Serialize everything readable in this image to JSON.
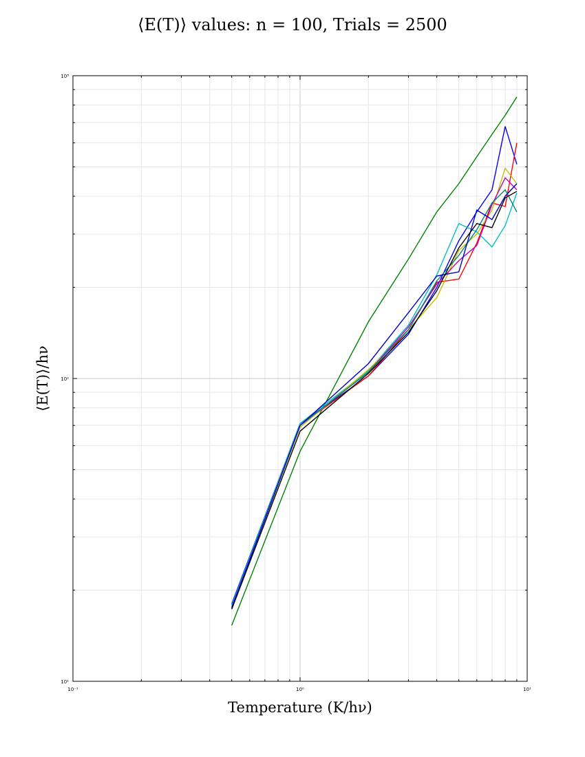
{
  "chart_data": {
    "type": "line",
    "title": "⟨E(T)⟩ values: n = 100, Trials = 2500",
    "xlabel": "Temperature (K/hν)",
    "ylabel": "⟨E(T)⟩/hν",
    "xscale": "log",
    "yscale": "log",
    "xlim": [
      0.1,
      10
    ],
    "ylim": [
      10,
      1000
    ],
    "grid": true,
    "x_ticks": [
      {
        "value": 0.1,
        "label": "10⁻¹"
      },
      {
        "value": 1,
        "label": "10⁰"
      },
      {
        "value": 10,
        "label": "10¹"
      }
    ],
    "y_ticks": [
      {
        "value": 10,
        "label": "10¹"
      },
      {
        "value": 100,
        "label": "10²"
      },
      {
        "value": 1000,
        "label": "10³"
      }
    ],
    "x": [
      0.5,
      1,
      2,
      3,
      4,
      5,
      6,
      7,
      8,
      9
    ],
    "series": [
      {
        "color": "#008000",
        "values": [
          15.3,
          57.5,
          154,
          248,
          355,
          440,
          540,
          640,
          740,
          850
        ],
        "x": [
          0.5,
          1,
          2,
          3,
          4,
          5,
          6,
          7,
          8,
          9
        ]
      },
      {
        "color": "#0000ff",
        "values": [
          18,
          71,
          102,
          140,
          200,
          285,
          355,
          420,
          680,
          510
        ]
      },
      {
        "color": "#ff0000",
        "values": [
          17.5,
          70,
          102,
          145,
          208,
          213,
          280,
          380,
          370,
          600
        ]
      },
      {
        "color": "#00bfbf",
        "values": [
          17.8,
          71,
          106,
          150,
          220,
          325,
          305,
          272,
          320,
          410
        ]
      },
      {
        "color": "#bfbf00",
        "values": [
          17.5,
          69,
          107,
          145,
          185,
          265,
          300,
          360,
          495,
          440
        ]
      },
      {
        "color": "#bf00bf",
        "values": [
          17.5,
          70,
          105,
          148,
          205,
          245,
          275,
          375,
          460,
          420
        ]
      },
      {
        "color": "#008080",
        "values": [
          17.5,
          70,
          105,
          145,
          210,
          255,
          310,
          380,
          420,
          355
        ]
      },
      {
        "color": "#0000cc",
        "values": [
          17.5,
          70,
          112,
          165,
          218,
          225,
          360,
          335,
          400,
          440
        ]
      },
      {
        "color": "#000000",
        "values": [
          17.3,
          67,
          104,
          142,
          195,
          270,
          325,
          315,
          395,
          415
        ]
      }
    ]
  }
}
